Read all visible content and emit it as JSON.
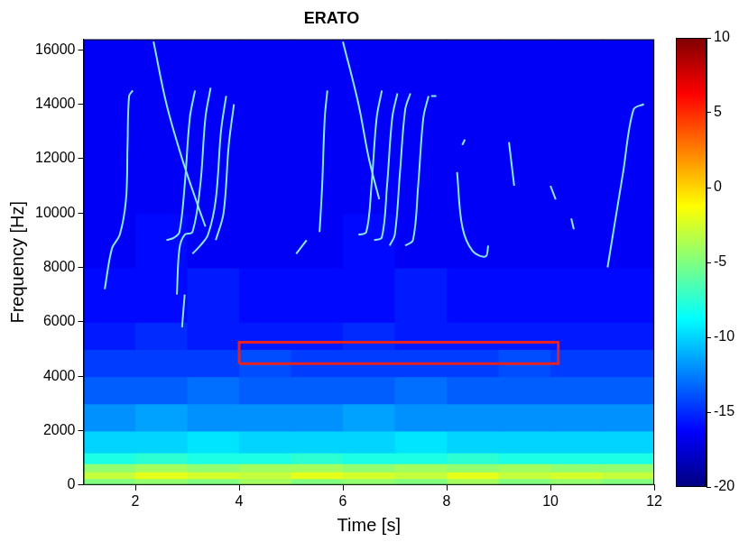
{
  "chart_data": {
    "type": "heatmap",
    "title": "ERATO",
    "x_label": "Time [s]",
    "y_label": "Frequency [Hz]",
    "xlim": [
      1,
      12
    ],
    "ylim": [
      0,
      16384
    ],
    "xticks": [
      2,
      4,
      6,
      8,
      10,
      12
    ],
    "yticks": [
      0,
      2000,
      4000,
      6000,
      8000,
      10000,
      12000,
      14000,
      16000
    ],
    "grid": false,
    "x_edges": [
      1,
      2,
      3,
      4,
      5,
      6,
      7,
      8,
      9,
      10,
      11,
      12
    ],
    "y_edges": [
      0,
      250,
      500,
      800,
      1200,
      2000,
      3000,
      4000,
      5000,
      6000,
      8000,
      10000,
      12000,
      14000,
      16384
    ],
    "cells": [
      [
        -5,
        -4.5,
        -5,
        -4,
        -5,
        -4.5,
        -5,
        -4,
        -5,
        -4.5,
        -5
      ],
      [
        -3,
        -2,
        -2.5,
        -3,
        -2,
        -2.5,
        -3,
        -2,
        -3,
        -2.5,
        -3
      ],
      [
        -4.5,
        -4,
        -4.5,
        -4,
        -4,
        -4.5,
        -4,
        -4.5,
        -4,
        -4.5,
        -4.5
      ],
      [
        -8,
        -7.5,
        -8,
        -8,
        -7.5,
        -8,
        -8,
        -7.5,
        -8,
        -8,
        -8
      ],
      [
        -10,
        -10,
        -9.5,
        -10,
        -10,
        -10,
        -9.5,
        -10,
        -10,
        -10,
        -10
      ],
      [
        -12,
        -11.5,
        -12,
        -12,
        -12,
        -11.5,
        -12,
        -12,
        -12,
        -12,
        -12
      ],
      [
        -13.5,
        -13.5,
        -13,
        -13.5,
        -13.5,
        -13.5,
        -13,
        -13.5,
        -13.5,
        -13.5,
        -13.5
      ],
      [
        -14.5,
        -14.5,
        -14.5,
        -14,
        -14.5,
        -14.5,
        -14.5,
        -14.5,
        -14,
        -14.5,
        -14.5
      ],
      [
        -15.5,
        -15,
        -15.5,
        -15.5,
        -15.5,
        -15,
        -15.5,
        -15.5,
        -15.5,
        -15.5,
        -15.5
      ],
      [
        -16,
        -16,
        -15.5,
        -16,
        -16,
        -16,
        -15.5,
        -16,
        -16,
        -16,
        -16
      ],
      [
        -16.5,
        -16,
        -16.5,
        -16.5,
        -16.5,
        -16,
        -16.5,
        -16.5,
        -16.5,
        -16.5,
        -16.5
      ],
      [
        -16.5,
        -16.5,
        -16.5,
        -16.5,
        -16.5,
        -16.5,
        -16.5,
        -16.5,
        -16.5,
        -16.5,
        -16.5
      ],
      [
        -16.5,
        -16.5,
        -16.5,
        -16.5,
        -16.5,
        -16.5,
        -16.5,
        -16.5,
        -16.5,
        -16.5,
        -16.5
      ],
      [
        -16.5,
        -16.5,
        -16.5,
        -16.5,
        -16.5,
        -16.5,
        -16.5,
        -16.5,
        -16.5,
        -16.5,
        -16.5
      ]
    ],
    "colorbar": {
      "lim": [
        -20,
        10
      ],
      "ticks": [
        -20,
        -15,
        -10,
        -5,
        0,
        5,
        10
      ]
    },
    "series": [
      {
        "type": "line",
        "color": "#8ae8ee",
        "x": [
          1.41,
          1.55,
          1.7,
          1.82,
          1.85,
          1.88,
          1.95
        ],
        "values": [
          7200,
          8700,
          9200,
          10500,
          12500,
          14300,
          14500
        ]
      },
      {
        "type": "line",
        "color": "#8ae8ee",
        "x": [
          2.35,
          2.6,
          2.9,
          3.2,
          3.35
        ],
        "values": [
          16300,
          14000,
          12000,
          10300,
          9500
        ]
      },
      {
        "type": "line",
        "color": "#8ae8ee",
        "x": [
          2.6,
          2.75,
          2.85,
          2.95,
          3.05,
          3.15
        ],
        "values": [
          9000,
          9100,
          9300,
          11000,
          13500,
          14500
        ]
      },
      {
        "type": "line",
        "color": "#8ae8ee",
        "x": [
          2.8,
          2.85,
          2.95,
          3.1,
          3.25,
          3.35,
          3.45
        ],
        "values": [
          7000,
          8700,
          9200,
          9300,
          11000,
          13500,
          14600
        ]
      },
      {
        "type": "line",
        "color": "#8ae8ee",
        "x": [
          2.9,
          2.95
        ],
        "values": [
          5800,
          7000
        ]
      },
      {
        "type": "line",
        "color": "#8ae8ee",
        "x": [
          3.1,
          3.25,
          3.4,
          3.55,
          3.65,
          3.75
        ],
        "values": [
          8500,
          8800,
          9200,
          10500,
          13000,
          14300
        ]
      },
      {
        "type": "line",
        "color": "#8ae8ee",
        "x": [
          3.55,
          3.7,
          3.8,
          3.9
        ],
        "values": [
          9000,
          10000,
          12500,
          14000
        ]
      },
      {
        "type": "line",
        "color": "#8ae8ee",
        "x": [
          5.1,
          5.3
        ],
        "values": [
          8500,
          9000
        ]
      },
      {
        "type": "line",
        "color": "#8ae8ee",
        "x": [
          5.55,
          5.6,
          5.65,
          5.7
        ],
        "values": [
          9300,
          11000,
          13500,
          14500
        ]
      },
      {
        "type": "line",
        "color": "#8ae8ee",
        "x": [
          6.0,
          6.3,
          6.5,
          6.7
        ],
        "values": [
          16300,
          14000,
          12000,
          10500
        ]
      },
      {
        "type": "line",
        "color": "#8ae8ee",
        "x": [
          6.3,
          6.45,
          6.55,
          6.65,
          6.75
        ],
        "values": [
          9200,
          9300,
          11000,
          13500,
          14500
        ]
      },
      {
        "type": "line",
        "color": "#8ae8ee",
        "x": [
          6.6,
          6.75,
          6.85,
          6.95,
          7.05
        ],
        "values": [
          9000,
          9100,
          11000,
          13500,
          14400
        ]
      },
      {
        "type": "line",
        "color": "#8ae8ee",
        "x": [
          6.9,
          7.0,
          7.1,
          7.2,
          7.3
        ],
        "values": [
          8800,
          9200,
          11500,
          13800,
          14400
        ]
      },
      {
        "type": "line",
        "color": "#8ae8ee",
        "x": [
          7.2,
          7.35,
          7.45,
          7.55,
          7.65
        ],
        "values": [
          8800,
          9000,
          11000,
          13500,
          14300
        ]
      },
      {
        "type": "line",
        "color": "#8ae8ee",
        "x": [
          7.7,
          7.8
        ],
        "values": [
          14300,
          14300
        ]
      },
      {
        "type": "line",
        "color": "#8ae8ee",
        "x": [
          8.2,
          8.3,
          8.5,
          8.75,
          8.8
        ],
        "values": [
          11500,
          9500,
          8600,
          8400,
          8800
        ]
      },
      {
        "type": "line",
        "color": "#8ae8ee",
        "x": [
          8.3,
          8.35
        ],
        "values": [
          12500,
          12700
        ]
      },
      {
        "type": "line",
        "color": "#8ae8ee",
        "x": [
          9.2,
          9.3
        ],
        "values": [
          12600,
          11000
        ]
      },
      {
        "type": "line",
        "color": "#8ae8ee",
        "x": [
          10.0,
          10.1
        ],
        "values": [
          11000,
          10500
        ]
      },
      {
        "type": "line",
        "color": "#8ae8ee",
        "x": [
          10.4,
          10.45
        ],
        "values": [
          9800,
          9400
        ]
      },
      {
        "type": "line",
        "color": "#8ae8ee",
        "x": [
          11.1,
          11.4,
          11.6,
          11.8
        ],
        "values": [
          8000,
          11500,
          13800,
          14000
        ]
      }
    ],
    "annotations": [
      {
        "type": "rect",
        "x": [
          4,
          10.15
        ],
        "y": [
          4460,
          5250
        ],
        "color": "#e8201f"
      }
    ]
  }
}
